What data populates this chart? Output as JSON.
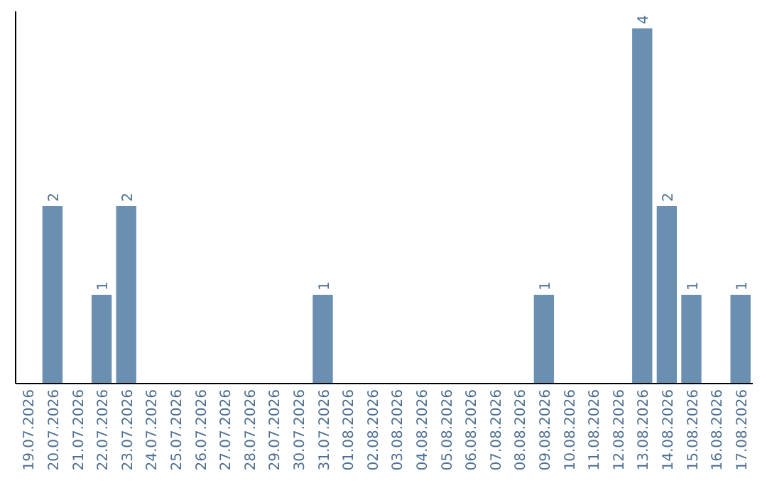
{
  "chart_data": {
    "type": "bar",
    "categories": [
      "19.07.2026",
      "20.07.2026",
      "21.07.2026",
      "22.07.2026",
      "23.07.2026",
      "24.07.2026",
      "25.07.2026",
      "26.07.2026",
      "27.07.2026",
      "28.07.2026",
      "29.07.2026",
      "30.07.2026",
      "31.07.2026",
      "01.08.2026",
      "02.08.2026",
      "03.08.2026",
      "04.08.2026",
      "05.08.2026",
      "06.08.2026",
      "07.08.2026",
      "08.08.2026",
      "09.08.2026",
      "10.08.2026",
      "11.08.2026",
      "12.08.2026",
      "13.08.2026",
      "14.08.2026",
      "15.08.2026",
      "16.08.2026",
      "17.08.2026"
    ],
    "values": [
      0,
      2,
      0,
      1,
      2,
      0,
      0,
      0,
      0,
      0,
      0,
      0,
      1,
      0,
      0,
      0,
      0,
      0,
      0,
      0,
      0,
      1,
      0,
      0,
      0,
      4,
      2,
      1,
      0,
      1
    ],
    "value_labels": [
      null,
      "2",
      null,
      "1",
      "2",
      null,
      null,
      null,
      null,
      null,
      null,
      null,
      "1",
      null,
      null,
      null,
      null,
      null,
      null,
      null,
      null,
      "1",
      null,
      null,
      null,
      "4",
      "2",
      "1",
      null,
      "1"
    ],
    "color": "#6b8fb0",
    "tick_labels": "x"
  }
}
